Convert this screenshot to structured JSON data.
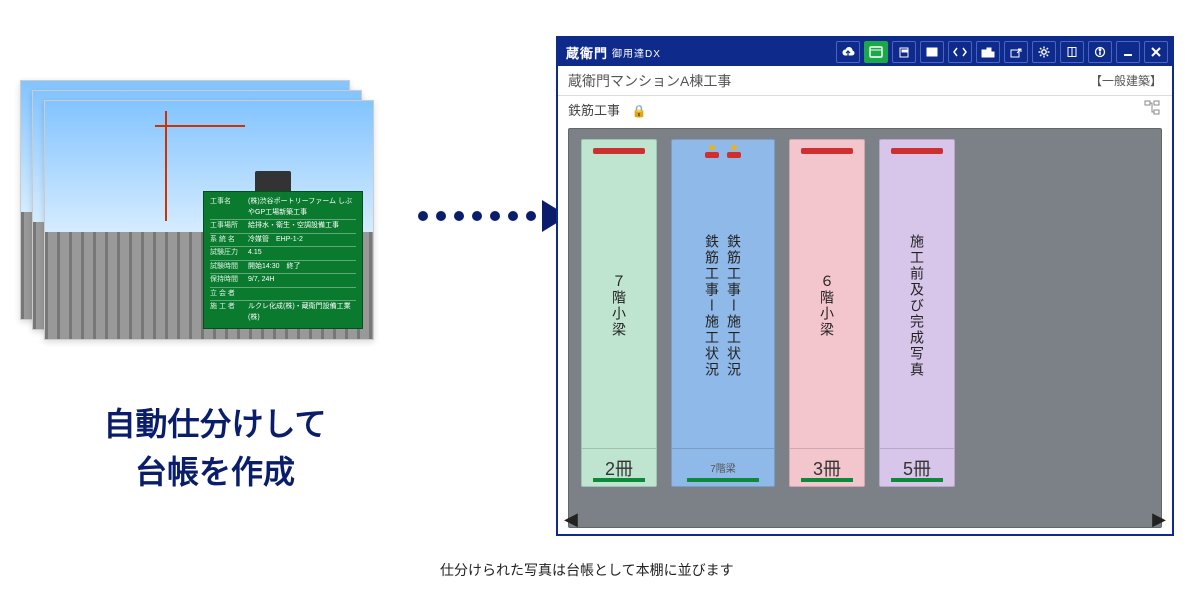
{
  "headline": {
    "line1": "自動仕分けして",
    "line2": "台帳を作成"
  },
  "caption": "仕分けられた写真は台帳として本棚に並びます",
  "app": {
    "brand_main": "蔵衛門",
    "brand_sub": "御用達DX",
    "project": "蔵衛門マンションA棟工事",
    "category_tag": "【一般建築】",
    "breadcrumb": "鉄筋工事",
    "star_icon": "★"
  },
  "board": {
    "rows": [
      {
        "lbl": "工事名",
        "val": "(株)渋谷ポートリーファーム しぶやGP工場新築工事"
      },
      {
        "lbl": "工事場所",
        "val": "給排水・衛生・空調設備工事"
      },
      {
        "lbl": "系 統 名",
        "val": "冷媒管　EHP-1-2"
      },
      {
        "lbl": "試験圧力",
        "val": "4.15"
      },
      {
        "lbl": "試験時間",
        "val": "開始14:30　終了"
      },
      {
        "lbl": "保持時間",
        "val": "9/7, 24H"
      },
      {
        "lbl": "立 会 者",
        "val": ""
      },
      {
        "lbl": "施 工 者",
        "val": "ルクレ化成(株)・蔵衛門設備工業(株)"
      }
    ]
  },
  "binders": [
    {
      "type": "single",
      "bg": "#bfe4cf",
      "top": "#ce2f2f",
      "under": "#0b8a3a",
      "title": "７階小梁",
      "count": "2冊"
    },
    {
      "type": "double",
      "bg": "#8fb9e8",
      "top": "#ce2f2f",
      "under": "#0b8a3a",
      "title_a": "鉄筋工事ー施工状況",
      "title_b": "鉄筋工事ー施工状況",
      "count": "7階梁",
      "star": "★"
    },
    {
      "type": "single",
      "bg": "#f3c6cd",
      "top": "#ce2f2f",
      "under": "#0b8a3a",
      "title": "６階小梁",
      "count": "3冊"
    },
    {
      "type": "single",
      "bg": "#d7c6ea",
      "top": "#ce2f2f",
      "under": "#0b8a3a",
      "title": "施工前及び完成写真",
      "count": "5冊"
    }
  ],
  "arrows": {
    "left": "◀",
    "right": "▶"
  }
}
